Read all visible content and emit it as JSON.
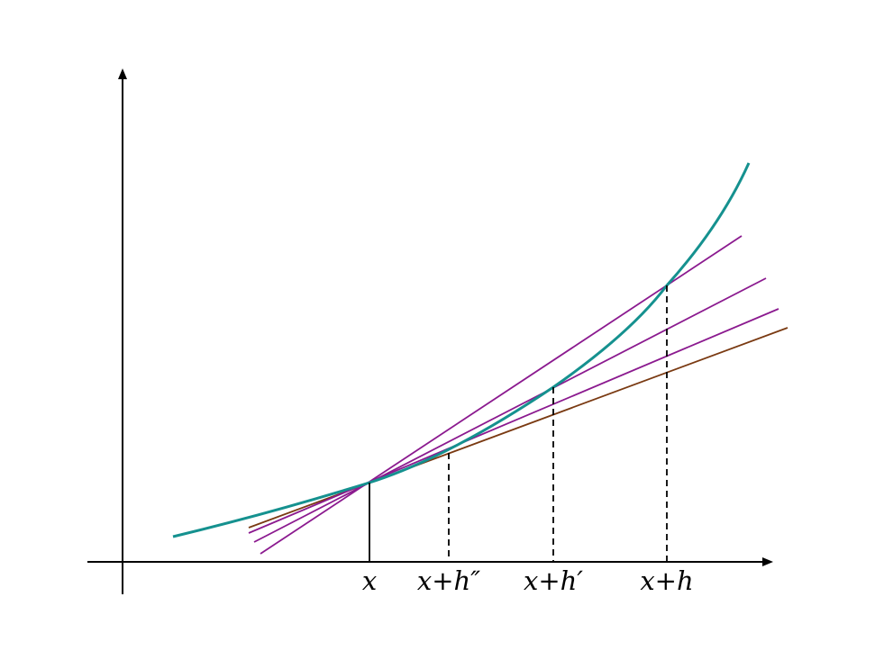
{
  "diagram": {
    "labels": {
      "x": "x",
      "x_h2": "x+h″",
      "x_h1": "x+h′",
      "x_h": "x+h"
    },
    "colors": {
      "axes": "#000000",
      "curve": "#15918f",
      "secants": "#8b1a8f",
      "tangent": "#7a3a12",
      "guides": "#000000"
    }
  }
}
